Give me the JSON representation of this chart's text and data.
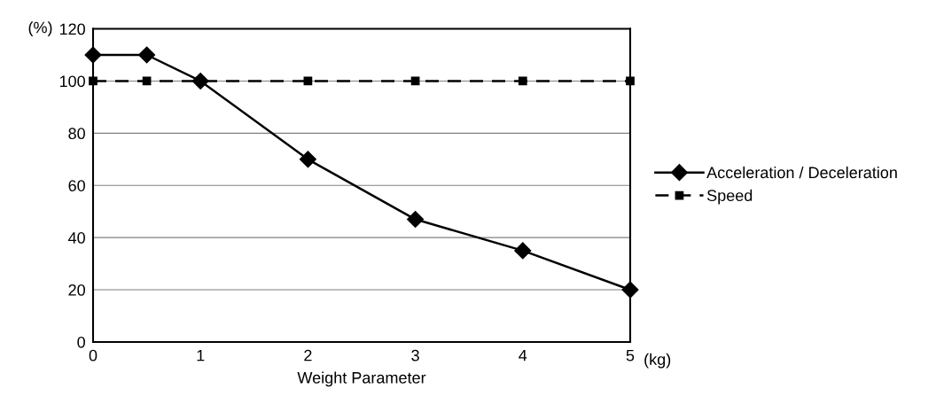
{
  "chart_data": {
    "type": "line",
    "xlabel": "Weight Parameter",
    "ylabel": "(%)",
    "annotations": [
      "(kg)"
    ],
    "x": [
      0,
      0.5,
      1,
      2,
      3,
      4,
      5
    ],
    "series": [
      {
        "name": "Acceleration / Deceleration",
        "color": "#000000",
        "marker": "diamond",
        "line_style": "solid",
        "values": [
          110,
          110,
          100,
          70,
          47,
          35,
          20
        ]
      },
      {
        "name": "Speed",
        "color": "#000000",
        "marker": "square",
        "line_style": "dashed",
        "values": [
          100,
          100,
          100,
          100,
          100,
          100,
          100
        ]
      }
    ],
    "xlim": [
      0,
      5
    ],
    "xticks": [
      0,
      1,
      2,
      3,
      4,
      5
    ],
    "ylim": [
      0,
      120
    ],
    "yticks": [
      0,
      20,
      40,
      60,
      80,
      100,
      120
    ],
    "grid": "y",
    "legend": "right"
  }
}
